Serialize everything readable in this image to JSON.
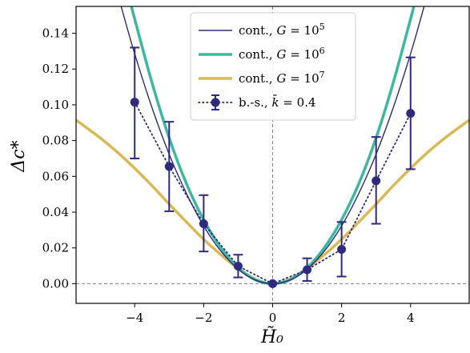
{
  "chart_data": {
    "type": "line",
    "xlabel": "H̃₀",
    "ylabel": "Δc*",
    "xlim": [
      -5.7,
      5.7
    ],
    "ylim": [
      -0.011,
      0.155
    ],
    "x_ticks": [
      -4,
      -2,
      0,
      2,
      4
    ],
    "x_tick_labels": [
      "−4",
      "−2",
      "0",
      "2",
      "4"
    ],
    "y_ticks": [
      0.0,
      0.02,
      0.04,
      0.06,
      0.08,
      0.1,
      0.12,
      0.14
    ],
    "y_tick_labels": [
      "0.00",
      "0.02",
      "0.04",
      "0.06",
      "0.08",
      "0.10",
      "0.12",
      "0.14"
    ],
    "legend_position": "top-center",
    "reference_lines": {
      "x": 0,
      "y": 0,
      "color": "#808080",
      "style": "dashed"
    },
    "series": [
      {
        "name": "cont., G = 10⁵",
        "legend": {
          "prefix": "cont., ",
          "var": "G",
          "eq": " = 10",
          "sup": "5"
        },
        "color": "#2e2a7d",
        "line_width": 1.4,
        "style": "solid",
        "x": [
          -4.4,
          -4,
          -3.5,
          -3,
          -2.5,
          -2,
          -1.5,
          -1,
          -0.5,
          0,
          0.5,
          1,
          1.5,
          2,
          2.5,
          3,
          3.5,
          4,
          4.4
        ],
        "y": [
          0.1555,
          0.1285,
          0.0985,
          0.0724,
          0.0505,
          0.0323,
          0.0182,
          0.0081,
          0.002,
          0.0,
          0.002,
          0.0081,
          0.0182,
          0.0323,
          0.0505,
          0.0724,
          0.0985,
          0.1285,
          0.1555
        ]
      },
      {
        "name": "cont., G = 10⁶",
        "legend": {
          "prefix": "cont., ",
          "var": "G",
          "eq": " = 10",
          "sup": "6"
        },
        "color": "#3cb89e",
        "line_width": 3.5,
        "style": "solid",
        "x": [
          -4.1,
          -4,
          -3.5,
          -3,
          -2.5,
          -2,
          -1.5,
          -1,
          -0.5,
          0,
          0.5,
          1,
          1.5,
          2,
          2.5,
          3,
          3.5,
          4,
          4.1
        ],
        "y": [
          0.1555,
          0.148,
          0.1125,
          0.0815,
          0.056,
          0.0357,
          0.0201,
          0.0089,
          0.0022,
          0.0,
          0.0022,
          0.0089,
          0.0201,
          0.0357,
          0.056,
          0.0815,
          0.1125,
          0.148,
          0.1555
        ]
      },
      {
        "name": "cont., G = 10⁷",
        "legend": {
          "prefix": "cont., ",
          "var": "G",
          "eq": " = 10",
          "sup": "7"
        },
        "color": "#d9b954",
        "line_width": 3.5,
        "style": "solid",
        "x": [
          -5.7,
          -5,
          -4.5,
          -4,
          -3.5,
          -3,
          -2.5,
          -2,
          -1.5,
          -1,
          -0.5,
          0,
          0.5,
          1,
          1.5,
          2,
          2.5,
          3,
          3.5,
          4,
          4.5,
          5,
          5.7
        ],
        "y": [
          0.0915,
          0.0815,
          0.0735,
          0.0645,
          0.0548,
          0.0445,
          0.0345,
          0.0248,
          0.0162,
          0.0085,
          0.0025,
          0.0,
          0.0025,
          0.0085,
          0.0162,
          0.0248,
          0.0345,
          0.0445,
          0.0548,
          0.0645,
          0.0735,
          0.0815,
          0.0915
        ]
      },
      {
        "name": "b.-s., k̄ = 0.4",
        "legend": {
          "prefix": "b.-s., ",
          "var": "k̄",
          "eq": " = 0.4",
          "sup": ""
        },
        "color": "#2e2a7d",
        "line_width": 1.8,
        "style": "dotted",
        "marker": "circle",
        "x": [
          -4,
          -3,
          -2,
          -1,
          0,
          1,
          2,
          3,
          4
        ],
        "y": [
          0.1015,
          0.0655,
          0.0335,
          0.0098,
          0.0,
          0.0078,
          0.0192,
          0.0575,
          0.0952
        ],
        "err_low": [
          0.07,
          0.0405,
          0.018,
          0.0035,
          0.0,
          0.0015,
          0.004,
          0.0335,
          0.064
        ],
        "err_high": [
          0.132,
          0.0905,
          0.0495,
          0.0162,
          0.0,
          0.0142,
          0.0345,
          0.082,
          0.1265
        ]
      }
    ]
  }
}
